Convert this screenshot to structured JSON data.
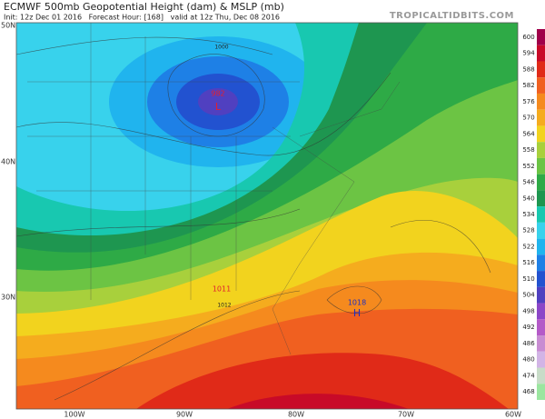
{
  "header": {
    "title": "ECMWF 500mb Geopotential Height (dam) & MSLP (mb)",
    "subtitle": "Init: 12z Dec 01 2016   Forecast Hour: [168]   valid at 12z Thu, Dec 08 2016",
    "watermark": "TROPICALTIDBITS.COM"
  },
  "map": {
    "lat_labels": [
      "50N",
      "40N",
      "30N"
    ],
    "lon_labels": [
      "100W",
      "90W",
      "80W",
      "70W",
      "60W"
    ],
    "pressure_labels": [
      "982",
      "L",
      "1018",
      "H",
      "1011",
      "1012",
      "1000"
    ]
  },
  "colorbar": {
    "ticks": [
      "600",
      "594",
      "588",
      "582",
      "576",
      "570",
      "564",
      "558",
      "552",
      "546",
      "540",
      "534",
      "528",
      "522",
      "516",
      "510",
      "504",
      "498",
      "492",
      "486",
      "480",
      "474",
      "468"
    ],
    "colors": [
      "#a0004a",
      "#c80a28",
      "#e02a18",
      "#f06020",
      "#f58a1e",
      "#f5ac1e",
      "#f2d31e",
      "#a8d03c",
      "#6cc444",
      "#2eaa46",
      "#1e9650",
      "#18c8b0",
      "#38d2ec",
      "#20b4ee",
      "#1e80e6",
      "#2252d0",
      "#5040c0",
      "#8c46c8",
      "#b45ac8",
      "#c88cd2",
      "#d2b4e6",
      "#c8dcc8",
      "#9be6a0"
    ]
  }
}
